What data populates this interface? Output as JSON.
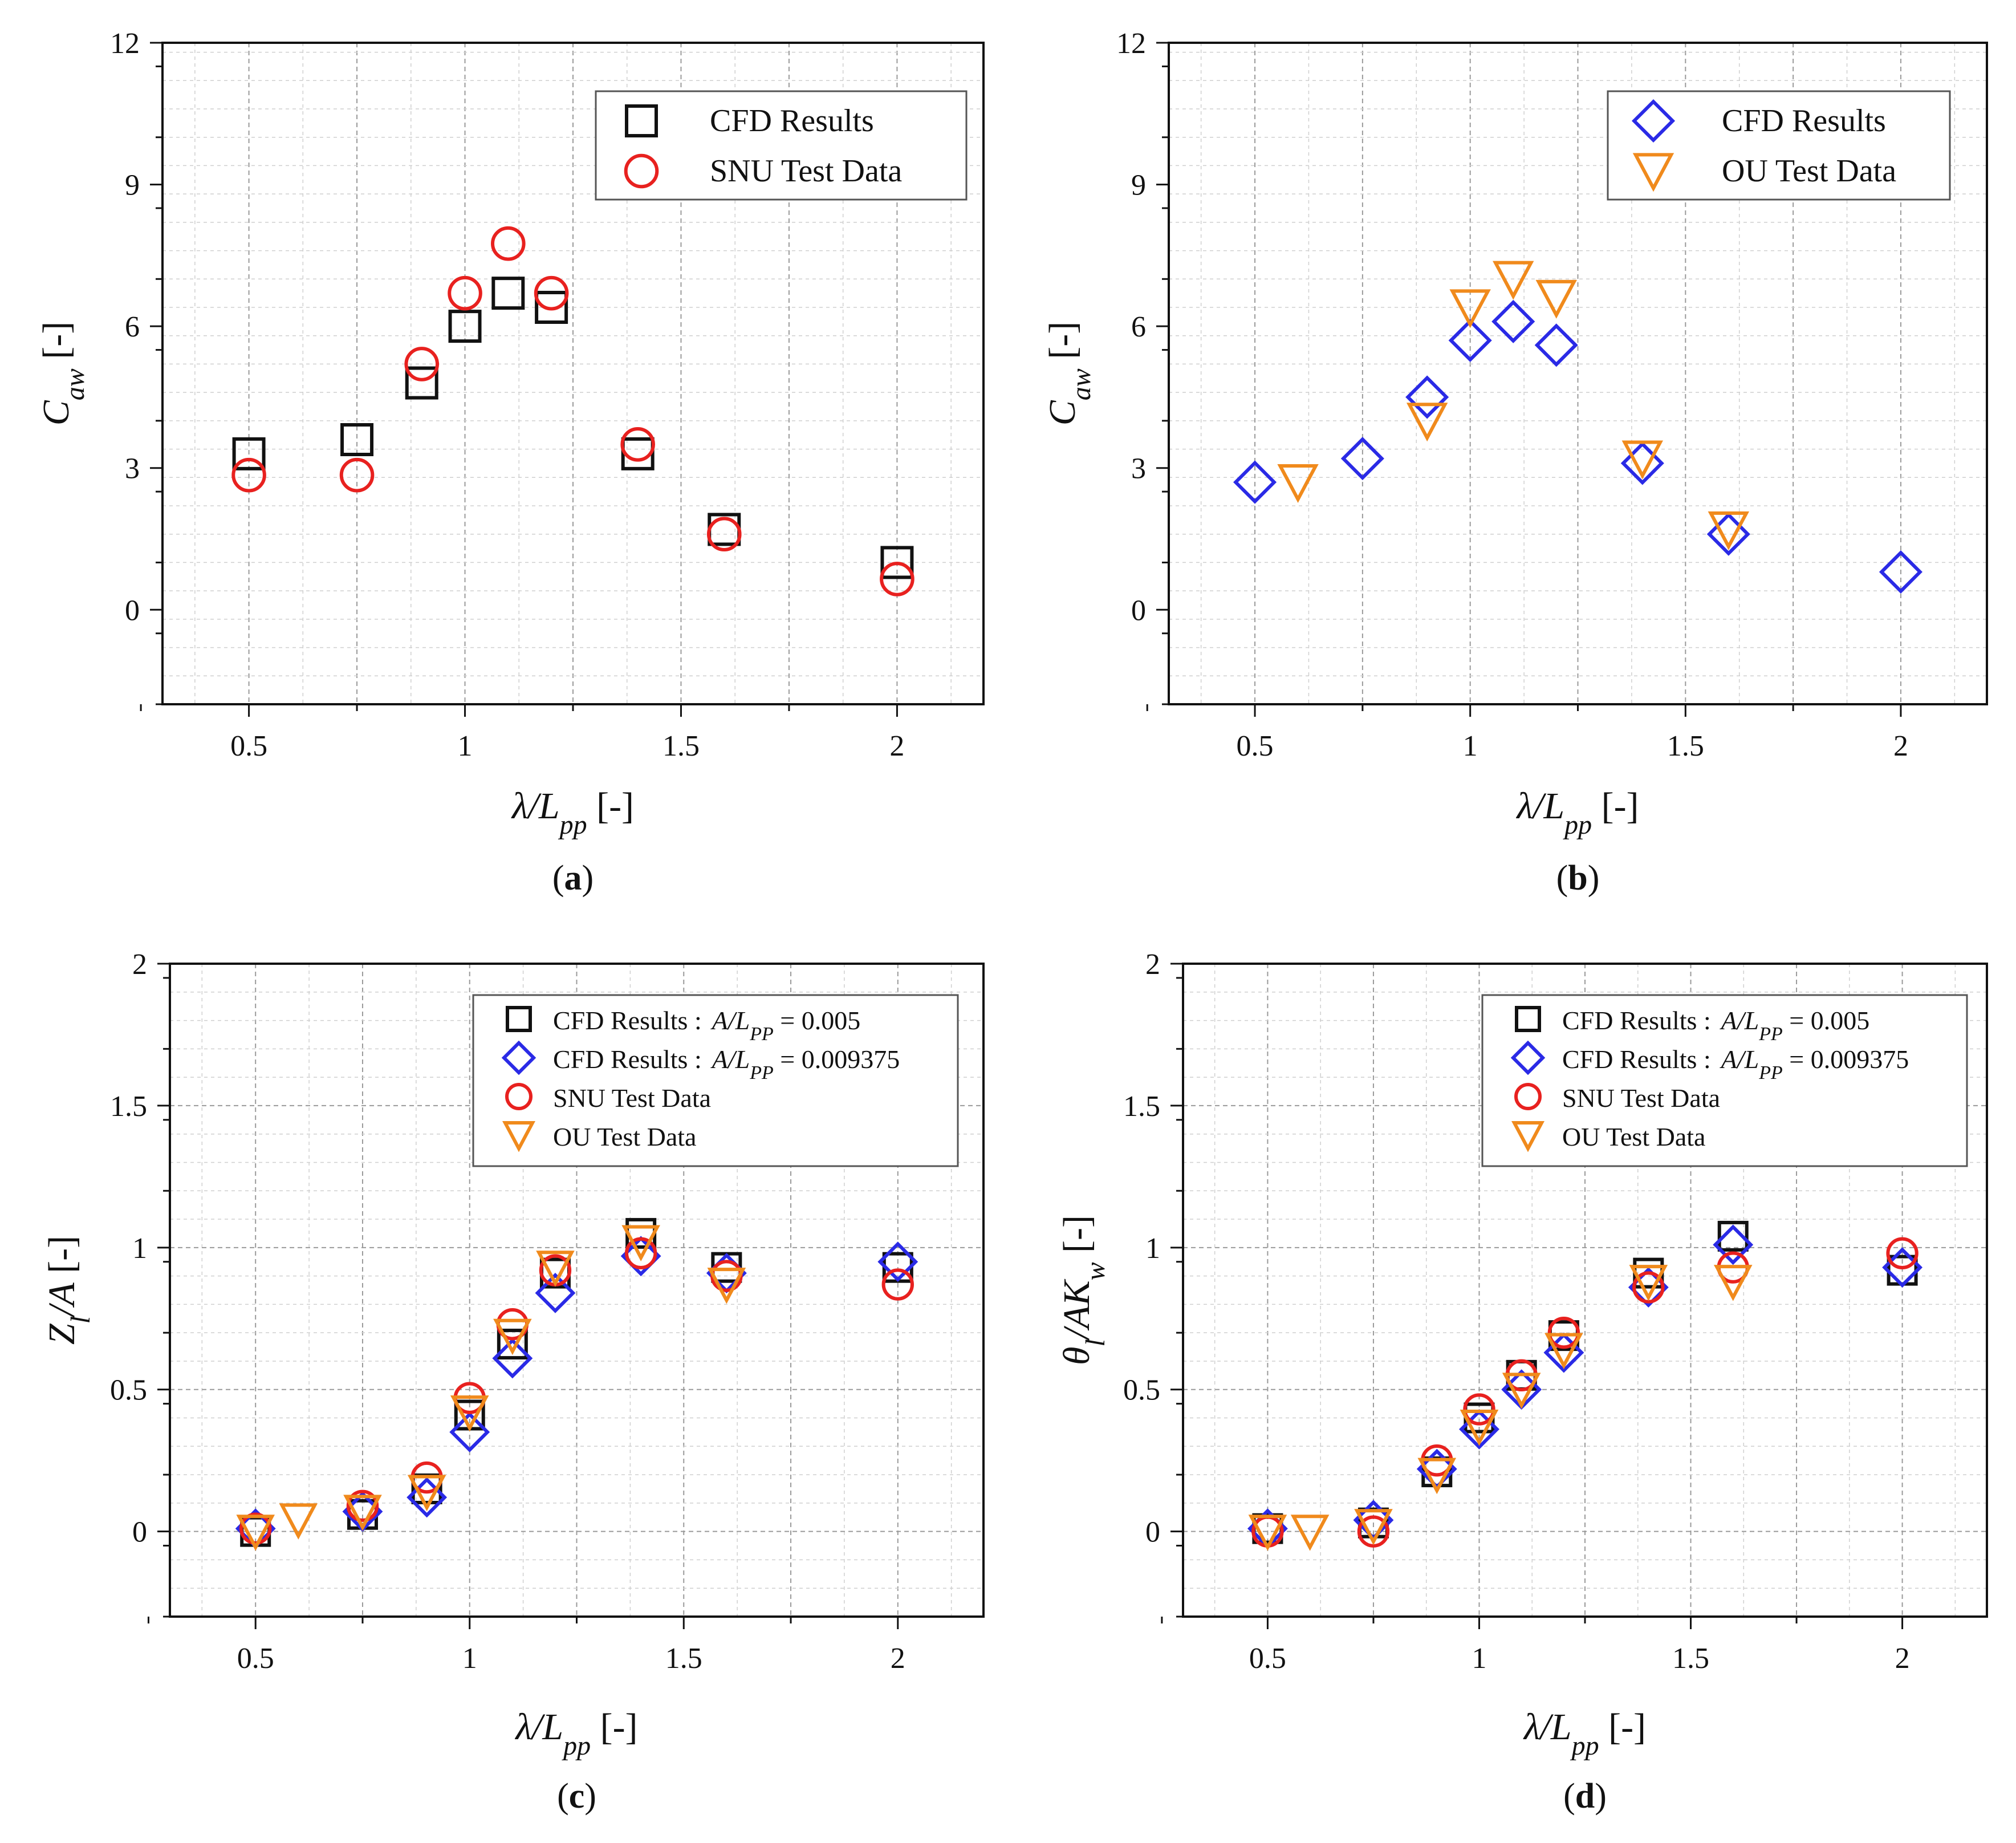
{
  "chart_data": [
    {
      "id": "a",
      "type": "scatter",
      "caption": "(a)",
      "ylabel": "C_aw [-]",
      "xlabel": "λ/L_pp [-]",
      "xlim": [
        0.3,
        2.2
      ],
      "ylim": [
        -2,
        12
      ],
      "xticks": [
        0.5,
        1,
        1.5,
        2
      ],
      "xtick_labels": [
        "0.5",
        "1",
        "1.5",
        "2"
      ],
      "yticks": [
        0,
        3,
        6,
        9,
        12
      ],
      "ytick_labels": [
        "0",
        "3",
        "6",
        "9",
        "12"
      ],
      "grid": true,
      "legend_position": "top-right",
      "series": [
        {
          "name": "CFD Results",
          "marker": "square",
          "color": "#111111",
          "x": [
            0.5,
            0.75,
            0.9,
            1.0,
            1.1,
            1.2,
            1.4,
            1.6,
            2.0
          ],
          "y": [
            3.3,
            3.6,
            4.8,
            6.0,
            6.7,
            6.4,
            3.3,
            1.7,
            1.0
          ]
        },
        {
          "name": "SNU Test Data",
          "marker": "circle",
          "color": "#e8211f",
          "x": [
            0.5,
            0.75,
            0.9,
            1.0,
            1.1,
            1.2,
            1.4,
            1.6,
            2.0
          ],
          "y": [
            2.85,
            2.85,
            5.2,
            6.7,
            7.75,
            6.7,
            3.5,
            1.6,
            0.65
          ]
        }
      ]
    },
    {
      "id": "b",
      "type": "scatter",
      "caption": "(b)",
      "ylabel": "C_aw [-]",
      "xlabel": "λ/L_pp [-]",
      "xlim": [
        0.3,
        2.2
      ],
      "ylim": [
        -2,
        12
      ],
      "xticks": [
        0.5,
        1,
        1.5,
        2
      ],
      "xtick_labels": [
        "0.5",
        "1",
        "1.5",
        "2"
      ],
      "yticks": [
        0,
        3,
        6,
        9,
        12
      ],
      "ytick_labels": [
        "0",
        "3",
        "6",
        "9",
        "12"
      ],
      "grid": true,
      "legend_position": "top-right",
      "series": [
        {
          "name": "CFD Results",
          "marker": "diamond",
          "color": "#2a2ae6",
          "x": [
            0.5,
            0.75,
            0.9,
            1.0,
            1.1,
            1.2,
            1.4,
            1.6,
            2.0
          ],
          "y": [
            2.7,
            3.2,
            4.5,
            5.7,
            6.1,
            5.6,
            3.1,
            1.6,
            0.8
          ]
        },
        {
          "name": "OU Test Data",
          "marker": "triangle-down",
          "color": "#f08a1c",
          "x": [
            0.6,
            0.9,
            1.0,
            1.1,
            1.2,
            1.4,
            1.6
          ],
          "y": [
            2.7,
            4.0,
            6.4,
            7.0,
            6.6,
            3.2,
            1.7
          ]
        }
      ]
    },
    {
      "id": "c",
      "type": "scatter",
      "caption": "(c)",
      "ylabel": "Z_l/A [-]",
      "xlabel": "λ/L_pp [-]",
      "xlim": [
        0.3,
        2.2
      ],
      "ylim": [
        -0.3,
        2
      ],
      "xticks": [
        0.5,
        1,
        1.5,
        2
      ],
      "xtick_labels": [
        "0.5",
        "1",
        "1.5",
        "2"
      ],
      "yticks": [
        0,
        0.5,
        1,
        1.5,
        2
      ],
      "ytick_labels": [
        "0",
        "0.5",
        "1",
        "1.5",
        "2"
      ],
      "grid": true,
      "legend_position": "top-right",
      "series": [
        {
          "name": "CFD Results :",
          "name_suffix": "A/L_PP = 0.005",
          "marker": "square",
          "color": "#111111",
          "x": [
            0.5,
            0.75,
            0.9,
            1.0,
            1.1,
            1.2,
            1.4,
            1.6,
            2.0
          ],
          "y": [
            0.0,
            0.06,
            0.15,
            0.41,
            0.66,
            0.91,
            1.05,
            0.93,
            0.93
          ]
        },
        {
          "name": "CFD Results :",
          "name_suffix": "A/L_PP = 0.009375",
          "marker": "diamond",
          "color": "#2a2ae6",
          "x": [
            0.5,
            0.75,
            0.9,
            1.0,
            1.1,
            1.2,
            1.4,
            1.6,
            2.0
          ],
          "y": [
            0.01,
            0.07,
            0.12,
            0.35,
            0.61,
            0.84,
            0.97,
            0.91,
            0.95
          ]
        },
        {
          "name": "SNU Test Data",
          "marker": "circle",
          "color": "#e8211f",
          "x": [
            0.5,
            0.75,
            0.9,
            1.0,
            1.1,
            1.2,
            1.4,
            1.6,
            2.0
          ],
          "y": [
            0.01,
            0.09,
            0.19,
            0.47,
            0.73,
            0.92,
            0.98,
            0.9,
            0.87
          ]
        },
        {
          "name": "OU   Test Data",
          "marker": "triangle-down",
          "color": "#f08a1c",
          "x": [
            0.5,
            0.6,
            0.75,
            0.9,
            1.0,
            1.1,
            1.2,
            1.4,
            1.6
          ],
          "y": [
            0.0,
            0.04,
            0.07,
            0.14,
            0.42,
            0.69,
            0.93,
            1.02,
            0.87
          ]
        }
      ]
    },
    {
      "id": "d",
      "type": "scatter",
      "caption": "(d)",
      "ylabel": "θ_l/AK_w [-]",
      "xlabel": "λ/L_pp [-]",
      "xlim": [
        0.3,
        2.2
      ],
      "ylim": [
        -0.3,
        2
      ],
      "xticks": [
        0.5,
        1,
        1.5,
        2
      ],
      "xtick_labels": [
        "0.5",
        "1",
        "1.5",
        "2"
      ],
      "yticks": [
        0,
        0.5,
        1,
        1.5,
        2
      ],
      "ytick_labels": [
        "0",
        "0.5",
        "1",
        "1.5",
        "2"
      ],
      "grid": true,
      "legend_position": "top-right",
      "series": [
        {
          "name": "CFD Results :",
          "name_suffix": "A/L_PP = 0.005",
          "marker": "square",
          "color": "#111111",
          "x": [
            0.5,
            0.75,
            0.9,
            1.0,
            1.1,
            1.2,
            1.4,
            1.6,
            2.0
          ],
          "y": [
            0.01,
            0.03,
            0.21,
            0.4,
            0.55,
            0.69,
            0.91,
            1.04,
            0.92
          ]
        },
        {
          "name": "CFD Results :",
          "name_suffix": "A/L_PP = 0.009375",
          "marker": "diamond",
          "color": "#2a2ae6",
          "x": [
            0.5,
            0.75,
            0.9,
            1.0,
            1.1,
            1.2,
            1.4,
            1.6,
            2.0
          ],
          "y": [
            0.01,
            0.04,
            0.22,
            0.36,
            0.5,
            0.63,
            0.86,
            1.01,
            0.93
          ]
        },
        {
          "name": "SNU Test Data",
          "marker": "circle",
          "color": "#e8211f",
          "x": [
            0.5,
            0.75,
            0.9,
            1.0,
            1.1,
            1.2,
            1.4,
            1.6,
            2.0
          ],
          "y": [
            0.0,
            0.0,
            0.25,
            0.43,
            0.55,
            0.7,
            0.86,
            0.93,
            0.98
          ]
        },
        {
          "name": "OU   Test Data",
          "marker": "triangle-down",
          "color": "#f08a1c",
          "x": [
            0.5,
            0.6,
            0.75,
            0.9,
            1.0,
            1.1,
            1.2,
            1.4,
            1.6
          ],
          "y": [
            0.0,
            0.0,
            0.02,
            0.2,
            0.37,
            0.5,
            0.64,
            0.88,
            0.88
          ]
        }
      ]
    }
  ]
}
